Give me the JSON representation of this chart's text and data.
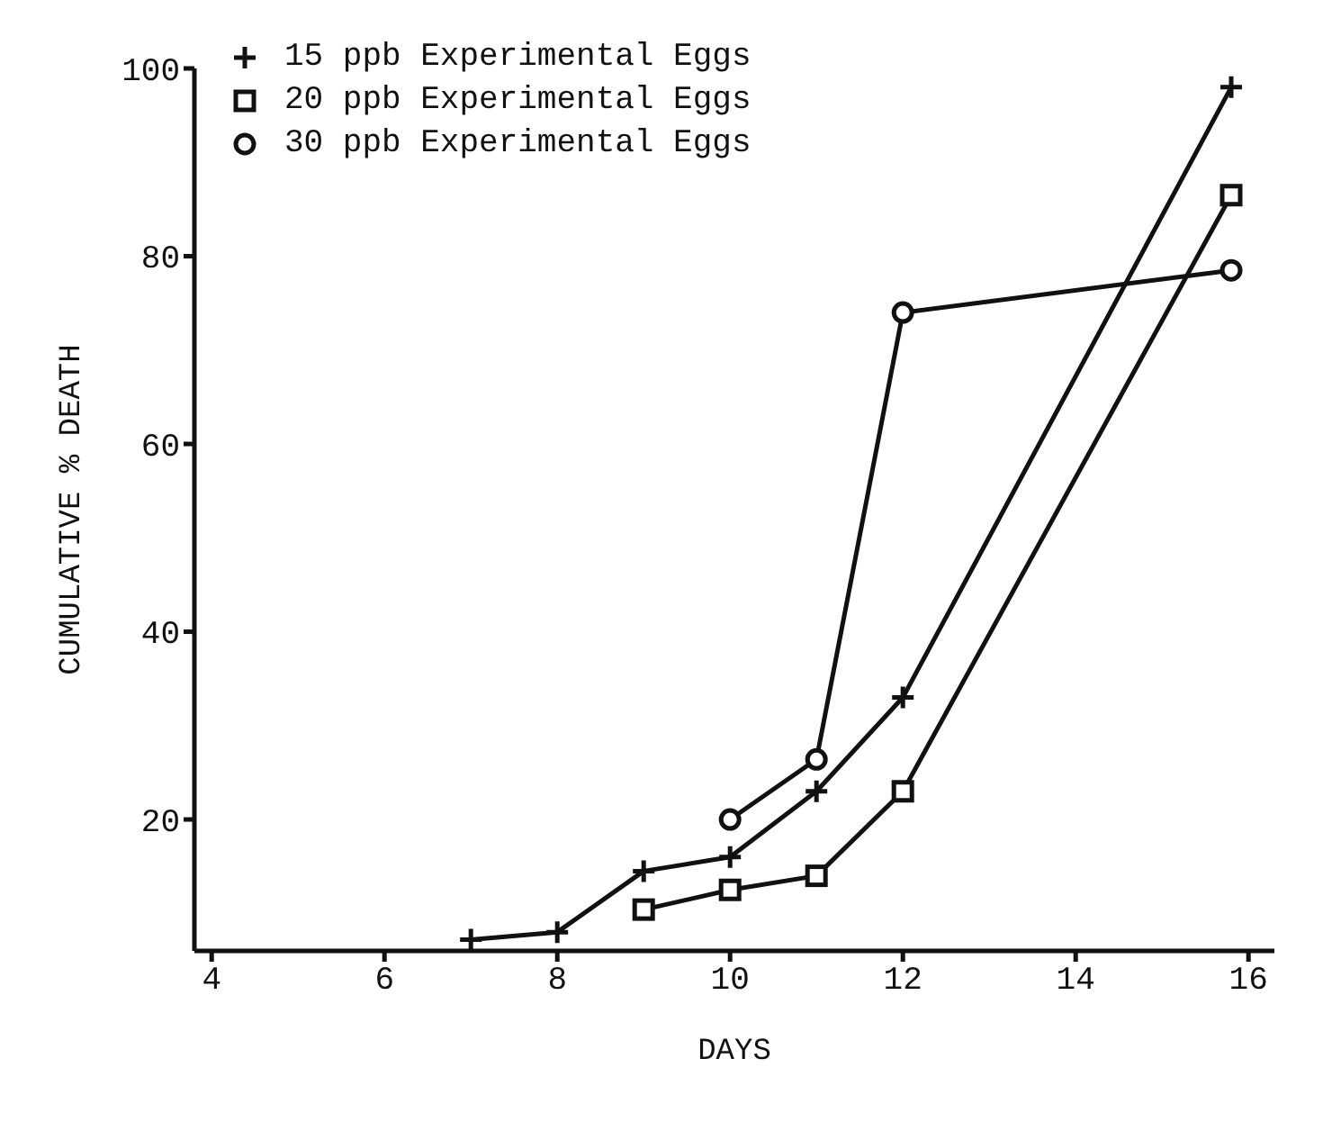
{
  "chart_data": {
    "type": "line",
    "xlabel": "DAYS",
    "ylabel": "CUMULATIVE % DEATH",
    "xlim": [
      3.8,
      16.3
    ],
    "xticks": [
      4,
      6,
      8,
      10,
      12,
      14,
      16
    ],
    "ylim": [
      6,
      100
    ],
    "yticks": [
      20,
      40,
      60,
      80,
      100
    ],
    "grid": false,
    "legend": "top left",
    "line_style": "solid",
    "series": [
      {
        "name": "15 ppb Experimental Eggs",
        "color": "#111111",
        "marker": "cross",
        "x": [
          7,
          8,
          9,
          10,
          11,
          12,
          15.8
        ],
        "values": [
          7.2,
          8,
          14.5,
          16,
          23,
          33,
          98
        ]
      },
      {
        "name": "20 ppb Experimental Eggs",
        "color": "#111111",
        "marker": "square",
        "x": [
          9,
          10,
          11,
          12,
          15.8
        ],
        "values": [
          10.4,
          12.5,
          14,
          23,
          86.5
        ]
      },
      {
        "name": "30 ppb Experimental Eggs",
        "color": "#111111",
        "marker": "circle",
        "x": [
          10,
          11,
          12,
          15.8
        ],
        "values": [
          20,
          26.4,
          74,
          78.5
        ]
      }
    ]
  }
}
